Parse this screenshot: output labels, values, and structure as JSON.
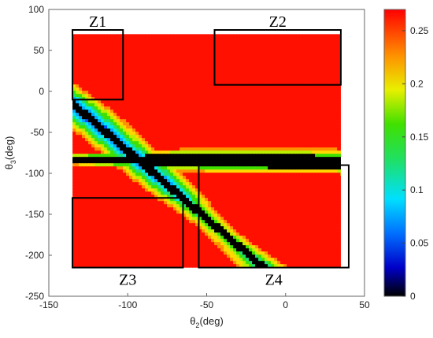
{
  "chart_data": {
    "type": "heatmap",
    "xlabel_main": "θ",
    "xlabel_sub": "2",
    "xlabel_unit": "(deg)",
    "ylabel_main": "θ",
    "ylabel_sub": "3",
    "ylabel_unit": "(deg)",
    "xlim": [
      -150,
      50
    ],
    "ylim": [
      -250,
      100
    ],
    "xticks": [
      -150,
      -100,
      -50,
      0,
      50
    ],
    "yticks": [
      -250,
      -200,
      -150,
      -100,
      -50,
      0,
      50,
      100
    ],
    "data_extent": {
      "x": [
        -135,
        35
      ],
      "y": [
        -215,
        70
      ]
    },
    "colorbar": {
      "range": [
        0,
        0.27
      ],
      "ticks": [
        0,
        0.05,
        0.1,
        0.15,
        0.2,
        0.25
      ],
      "colormap": "jet",
      "top_color": "#ff0000",
      "bottom_color": "#000000"
    },
    "grid": false,
    "regions": [
      {
        "label": "Z1",
        "x": [
          -135,
          -103
        ],
        "y": [
          -10,
          75
        ]
      },
      {
        "label": "Z2",
        "x": [
          -45,
          35
        ],
        "y": [
          8,
          75
        ]
      },
      {
        "label": "Z3",
        "x": [
          -135,
          -65
        ],
        "y": [
          -215,
          -130
        ]
      },
      {
        "label": "Z4",
        "x": [
          -55,
          40
        ],
        "y": [
          -215,
          -90
        ]
      }
    ]
  }
}
